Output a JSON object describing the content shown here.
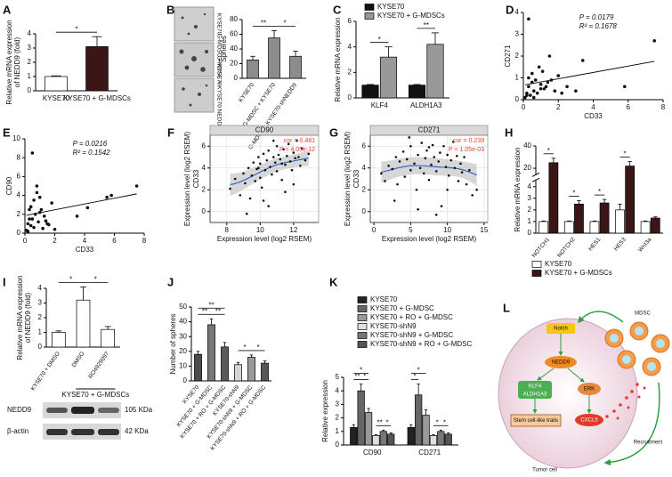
{
  "chart_data": [
    {
      "type": "bar",
      "panel": "A",
      "ylabel": [
        "Relative mRNA expression",
        "of NEDD9 (fold)"
      ],
      "categories": [
        "KYSE70",
        "KYSE70 + G-MDSCs"
      ],
      "values": [
        1,
        3.1
      ],
      "errors": [
        0.05,
        0.7
      ],
      "colors": [
        "#ffffff",
        "#3b1616"
      ],
      "ylim": [
        0,
        4
      ],
      "yticks": [
        0,
        1,
        2,
        3,
        4
      ],
      "significance": [
        {
          "label": "*",
          "between": [
            0,
            1
          ]
        }
      ]
    },
    {
      "type": "bar",
      "panel": "B",
      "ylabel": [
        "Spheres"
      ],
      "categories": [
        "KYSE70",
        "G-MDSC + KYSE70",
        "G-MDSC + KYSE70-shNEDD9"
      ],
      "values": [
        25,
        55,
        30
      ],
      "errors": [
        5,
        10,
        7
      ],
      "colors": [
        "#8c8c8c",
        "#8c8c8c",
        "#8c8c8c"
      ],
      "ylim": [
        0,
        80
      ],
      "yticks": [
        0,
        20,
        40,
        60,
        80
      ],
      "significance": [
        {
          "label": "**",
          "between": [
            0,
            1
          ]
        },
        {
          "label": "*",
          "between": [
            1,
            2
          ]
        }
      ]
    },
    {
      "type": "bar",
      "panel": "C",
      "ylabel": [
        "Relative mRNA expression"
      ],
      "categories": [
        "KLF4",
        "ALDH1A3"
      ],
      "series": [
        {
          "name": "KYSE70",
          "color": "#111111",
          "values": [
            1,
            1
          ],
          "errors": [
            0.05,
            0.05
          ]
        },
        {
          "name": "KYSE70 + G-MDSCs",
          "color": "#999999",
          "values": [
            3.2,
            4.2
          ],
          "errors": [
            0.8,
            0.9
          ]
        }
      ],
      "ylim": [
        0,
        6
      ],
      "yticks": [
        0,
        2,
        4,
        6
      ],
      "significance": [
        {
          "label": "*",
          "between": [
            0,
            1
          ]
        },
        {
          "label": "**",
          "between": [
            2,
            3
          ]
        }
      ]
    },
    {
      "type": "scatter",
      "panel": "D",
      "ylabel": "CD271",
      "xlabel": "CD33",
      "annotations": [
        "P = 0.0179",
        "R² = 0.1678"
      ],
      "color": "#111111",
      "x": [
        0.1,
        0.2,
        0.3,
        0.3,
        0.4,
        0.5,
        0.5,
        0.6,
        0.7,
        0.8,
        0.9,
        1.0,
        1.1,
        1.2,
        1.3,
        1.5,
        1.6,
        1.8,
        2.0,
        2.2,
        2.5,
        3.0,
        3.4,
        0.2,
        0.6,
        1.0,
        5.8,
        7.5,
        0.3,
        1.4
      ],
      "values": [
        0.1,
        0.3,
        3.7,
        0.6,
        0.2,
        0.8,
        1.2,
        0.4,
        0.9,
        0.3,
        1.5,
        0.7,
        1.3,
        0.5,
        0.6,
        2.0,
        0.9,
        0.4,
        1.1,
        0.3,
        0.6,
        0.4,
        1.8,
        0.2,
        0.1,
        0.5,
        0.6,
        2.7,
        1.0,
        0.8
      ],
      "xlim": [
        0,
        8
      ],
      "xticks": [
        0,
        2,
        4,
        6,
        8
      ],
      "ylim": [
        0,
        4
      ],
      "yticks": [
        0,
        1,
        2,
        3,
        4
      ],
      "fit": "linear"
    },
    {
      "type": "scatter",
      "panel": "E",
      "ylabel": "CD90",
      "xlabel": "CD33",
      "annotations": [
        "P = 0.0216",
        "R² = 0.1542"
      ],
      "color": "#111111",
      "x": [
        0.1,
        0.2,
        0.3,
        0.4,
        0.5,
        0.5,
        0.6,
        0.7,
        0.8,
        0.9,
        1.0,
        1.1,
        1.2,
        1.3,
        1.5,
        1.6,
        1.8,
        2.0,
        0.2,
        0.3,
        0.4,
        0.6,
        0.8,
        1.0,
        1.4,
        3.5,
        4.2,
        5.5,
        5.8,
        7.5
      ],
      "values": [
        0.3,
        1.0,
        2.5,
        0.8,
        1.5,
        8.5,
        3.5,
        2.0,
        4.3,
        1.2,
        3.8,
        2.5,
        0.5,
        1.8,
        1.0,
        0.9,
        3.2,
        0.4,
        0.2,
        1.5,
        2.8,
        0.6,
        5.0,
        2.2,
        1.3,
        1.8,
        2.7,
        3.8,
        4.0,
        5.0
      ],
      "xlim": [
        0,
        8
      ],
      "xticks": [
        0,
        2,
        4,
        6,
        8
      ],
      "ylim": [
        0,
        10
      ],
      "yticks": [
        0,
        2,
        4,
        6,
        8,
        10
      ],
      "fit": "linear"
    },
    {
      "type": "scatter",
      "panel": "F",
      "header": "CD90",
      "ylabel": "Expression level (log2 RSEM)",
      "ylabel_inner": "CD33",
      "xlabel": "Expression level (log2 RSEM)",
      "annotations": [
        "cor = 0.481",
        "P = 4.09e-12"
      ],
      "color": "#111111",
      "x": [
        8.2,
        8.5,
        8.8,
        9.0,
        9.1,
        9.3,
        9.4,
        9.5,
        9.6,
        9.7,
        9.8,
        9.9,
        10.0,
        10.0,
        10.1,
        10.2,
        10.3,
        10.4,
        10.5,
        10.5,
        10.6,
        10.7,
        10.8,
        10.9,
        11.0,
        11.0,
        11.1,
        11.2,
        11.3,
        11.4,
        11.5,
        11.6,
        11.7,
        11.8,
        11.9,
        12.0,
        12.1,
        12.2,
        12.3,
        12.4,
        12.5,
        12.7,
        12.9,
        10.2,
        9.2,
        11.5,
        12.0,
        10.8,
        9.9,
        11.3
      ],
      "values": [
        2.1,
        3.0,
        1.5,
        3.5,
        2.6,
        4.0,
        1.2,
        3.3,
        4.5,
        2.8,
        3.9,
        5.0,
        3.1,
        4.4,
        2.2,
        5.3,
        3.8,
        4.7,
        0.5,
        5.6,
        4.1,
        3.4,
        5.0,
        4.5,
        6.0,
        3.7,
        5.2,
        4.8,
        2.9,
        5.7,
        4.3,
        5.1,
        6.2,
        4.6,
        3.8,
        5.4,
        4.9,
        6.5,
        5.0,
        4.2,
        5.8,
        4.7,
        5.3,
        1.0,
        -0.2,
        1.8,
        2.5,
        6.5,
        4.0,
        4.4
      ],
      "xlim": [
        7,
        13.5
      ],
      "xticks": [
        8,
        10,
        12
      ],
      "ylim": [
        -1,
        7
      ],
      "yticks": [
        0,
        2,
        4,
        6
      ],
      "grid": true,
      "fit": "smooth"
    },
    {
      "type": "scatter",
      "panel": "G",
      "header": "CD271",
      "ylabel": "Expression level (log2 RSEM)",
      "ylabel_inner": "CD33",
      "xlabel": "Expression level (log2 RSEM)",
      "annotations": [
        "cor = 0.239",
        "P = 1.05e-03"
      ],
      "color": "#111111",
      "x": [
        1.0,
        1.5,
        2.0,
        2.5,
        3.0,
        3.2,
        3.5,
        4.0,
        4.2,
        4.5,
        5.0,
        5.0,
        5.5,
        5.8,
        6.0,
        6.3,
        6.5,
        6.8,
        7.0,
        7.2,
        7.5,
        7.8,
        8.0,
        8.2,
        8.5,
        8.8,
        9.0,
        9.2,
        9.5,
        9.8,
        10.0,
        10.2,
        10.5,
        10.8,
        11.0,
        11.3,
        11.5,
        11.8,
        12.0,
        12.3,
        12.6,
        13.0,
        13.4,
        14.0,
        2.8,
        6.0,
        8.5,
        4.8,
        10.0,
        7.5
      ],
      "values": [
        3.5,
        2.8,
        4.2,
        3.9,
        5.0,
        2.5,
        4.6,
        5.5,
        3.2,
        4.8,
        6.0,
        3.8,
        4.4,
        2.0,
        5.2,
        4.0,
        6.3,
        3.5,
        4.9,
        5.6,
        2.9,
        4.3,
        6.1,
        5.0,
        3.7,
        4.6,
        5.4,
        0.5,
        6.0,
        4.1,
        5.2,
        3.3,
        4.7,
        6.4,
        4.0,
        5.1,
        2.8,
        4.4,
        3.6,
        5.0,
        2.5,
        3.8,
        1.5,
        2.0,
        1.0,
        0.2,
        -0.3,
        6.8,
        2.0,
        5.9
      ],
      "xlim": [
        -0.5,
        15.5
      ],
      "xticks": [
        0,
        5,
        10,
        15
      ],
      "ylim": [
        -1,
        7
      ],
      "yticks": [
        0,
        2,
        4,
        6
      ],
      "grid": true,
      "fit": "smooth"
    },
    {
      "type": "bar",
      "panel": "H",
      "ylabel": [
        "Relative mRNA expression"
      ],
      "categories": [
        "NOTCH1",
        "NOTCH2",
        "HES1",
        "HES3",
        "Wnt3a"
      ],
      "series": [
        {
          "name": "KYSE70",
          "color": "#ffffff",
          "values": [
            1,
            1,
            1,
            2,
            1
          ],
          "errors": [
            0.05,
            0.05,
            0.05,
            0.5,
            0.05
          ]
        },
        {
          "name": "KYSE70 + G-MDSCs",
          "color": "#3b1616",
          "values": [
            25,
            2.5,
            2.6,
            22,
            1.3
          ],
          "errors": [
            4,
            0.3,
            0.3,
            4,
            0.1
          ]
        }
      ],
      "ylim": [
        0,
        40
      ],
      "ybreak": [
        4.5,
        15
      ],
      "yticks": [
        0,
        1,
        2,
        3,
        4,
        20,
        40
      ],
      "significance": [
        {
          "label": "*",
          "between": [
            0,
            1
          ]
        },
        {
          "label": "*",
          "between": [
            2,
            3
          ]
        },
        {
          "label": "*",
          "between": [
            4,
            5
          ]
        },
        {
          "label": "*",
          "between": [
            6,
            7
          ]
        }
      ]
    },
    {
      "type": "bar",
      "panel": "I",
      "ylabel": [
        "Relative mRNA expression",
        "of NEDD9 (fold)"
      ],
      "categories": [
        "KYSE70 + DMSO",
        "DMSO",
        "RO4929097"
      ],
      "values": [
        1,
        3.2,
        1.2
      ],
      "errors": [
        0.1,
        0.9,
        0.2
      ],
      "colors": [
        "#ffffff",
        "#ffffff",
        "#ffffff"
      ],
      "ylim": [
        0,
        4
      ],
      "yticks": [
        0,
        1,
        2,
        3,
        4
      ],
      "group_label": "KYSE70 + G-MDSCs",
      "group_span": [
        1,
        2
      ],
      "significance": [
        {
          "label": "*",
          "between": [
            0,
            1
          ]
        },
        {
          "label": "*",
          "between": [
            1,
            2
          ]
        }
      ]
    },
    {
      "type": "bar",
      "panel": "J",
      "ylabel": [
        "Number of spheres"
      ],
      "categories": [
        "KYSE70",
        "KYSE70 + G-MDSC",
        "KYSE70 + RO + G-MDSC",
        "KYSE70-shN9",
        "KYSE70-shN9 + G-MDSC",
        "KYSE70-shN9 + RO + G-MDSC"
      ],
      "values": [
        18,
        38,
        23,
        11,
        16,
        12
      ],
      "errors": [
        2,
        4,
        3,
        1.5,
        1.5,
        1.5
      ],
      "colors": [
        "#4a4a4a",
        "#777777",
        "#5a5a5a",
        "#d5d5d5",
        "#9a9a9a",
        "#555555"
      ],
      "ylim": [
        0,
        50
      ],
      "yticks": [
        0,
        10,
        20,
        30,
        40,
        50
      ],
      "significance": [
        {
          "label": "**",
          "between": [
            0,
            1
          ]
        },
        {
          "label": "**",
          "between": [
            1,
            2
          ]
        },
        {
          "label": "**",
          "between": [
            0,
            2
          ]
        },
        {
          "label": "*",
          "between": [
            3,
            4
          ]
        },
        {
          "label": "*",
          "between": [
            4,
            5
          ]
        }
      ]
    },
    {
      "type": "bar",
      "panel": "K",
      "ylabel": [
        "Relative expression"
      ],
      "categories": [
        "CD90",
        "CD271"
      ],
      "series": [
        {
          "name": "KYSE70",
          "color": "#222222",
          "values": [
            1.3,
            1.3
          ],
          "errors": [
            0.2,
            0.2
          ]
        },
        {
          "name": "KYSE70 + G-MDSC",
          "color": "#666666",
          "values": [
            4,
            3.7
          ],
          "errors": [
            0.5,
            0.8
          ]
        },
        {
          "name": "KYSE70 + RO + G-MDSC",
          "color": "#999999",
          "values": [
            2.4,
            2.2
          ],
          "errors": [
            0.3,
            0.4
          ]
        },
        {
          "name": "KYSE70-shN9",
          "color": "#e0e0e0",
          "values": [
            0.7,
            0.7
          ],
          "errors": [
            0.05,
            0.05
          ]
        },
        {
          "name": "KYSE70-shN9 + G-MDSC",
          "color": "#777777",
          "values": [
            1,
            1
          ],
          "errors": [
            0.1,
            0.1
          ]
        },
        {
          "name": "KYSE70-shN9 + RO + G-MDSC",
          "color": "#555555",
          "values": [
            0.8,
            0.8
          ],
          "errors": [
            0.1,
            0.1
          ]
        }
      ],
      "ylim": [
        0,
        5
      ],
      "yticks": [
        0,
        1,
        2,
        3,
        4,
        5
      ],
      "significance": [
        {
          "label": "**",
          "between": [
            0,
            1
          ]
        },
        {
          "label": "*",
          "between": [
            1,
            2
          ]
        },
        {
          "label": "*",
          "between": [
            0,
            2
          ]
        },
        {
          "label": "**",
          "between": [
            3,
            4
          ]
        },
        {
          "label": "*",
          "between": [
            4,
            5
          ]
        },
        {
          "label": "*",
          "between": [
            6,
            7
          ]
        },
        {
          "label": "*",
          "between": [
            6,
            8
          ]
        },
        {
          "label": "*",
          "between": [
            9,
            10
          ]
        },
        {
          "label": "*",
          "between": [
            10,
            11
          ]
        }
      ]
    }
  ],
  "micrographs": {
    "labels": [
      "KYSE70",
      "G-MDSC + KYSE70",
      "G-MDSC + KYSE70 NEDD9sh"
    ]
  },
  "blot": {
    "rows": [
      {
        "name": "NEDD9",
        "size": "105 KDa"
      },
      {
        "name": "β-actin",
        "size": "42 KDa"
      }
    ]
  },
  "diagram": {
    "panel": "L",
    "notch": "Notch",
    "nedd9": "NEDD9",
    "klf4": "KLF4",
    "aldh": "ALDH1A3",
    "erk": "ERK",
    "stem": "Stem cell-like traits",
    "cxcl5": "CXCL5",
    "mdsc": "MDSC",
    "recruitment": "Recruitment",
    "tumor": "Tumor cell"
  }
}
